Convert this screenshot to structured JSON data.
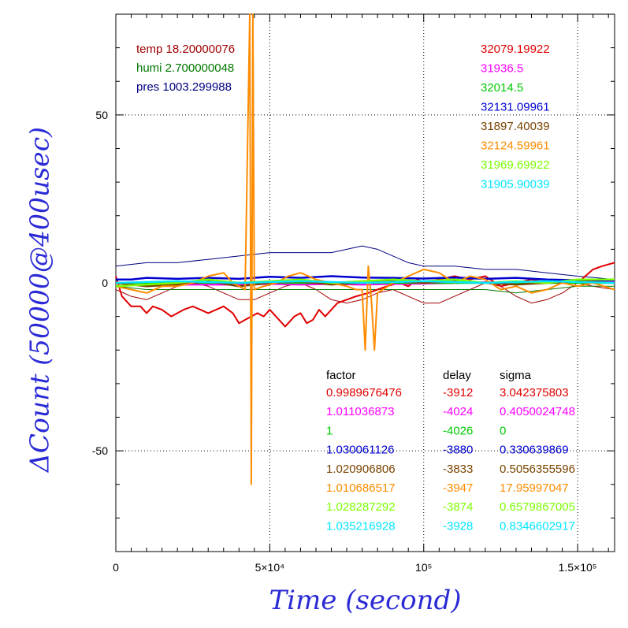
{
  "chart_data": {
    "type": "line",
    "xlabel": "Time (second)",
    "ylabel": "ΔCount (50000@400usec)",
    "xlim": [
      0,
      162000
    ],
    "ylim": [
      -80,
      80
    ],
    "x_tick_labels": [
      {
        "value": 0,
        "label": "0"
      },
      {
        "value": 50000,
        "label": "5×10⁴"
      },
      {
        "value": 100000,
        "label": "10⁵"
      },
      {
        "value": 150000,
        "label": "1.5×10⁵"
      }
    ],
    "y_tick_labels": [
      {
        "value": 50,
        "label": "50"
      },
      {
        "value": 0,
        "label": "0"
      },
      {
        "value": -50,
        "label": "-50"
      }
    ],
    "grid": true,
    "env": [
      {
        "text": "temp 18.20000076",
        "color": "#a00000"
      },
      {
        "text": "humi 2.700000048",
        "color": "#007800"
      },
      {
        "text": "pres 1003.299988",
        "color": "#000080"
      }
    ],
    "series": [
      {
        "color": "#e00000",
        "mean": "32079.19922",
        "factor": "0.9989676476",
        "delay": "-3912",
        "sigma": "3.042375803",
        "points": [
          [
            0,
            2
          ],
          [
            2000,
            -4
          ],
          [
            5000,
            -7
          ],
          [
            8000,
            -7
          ],
          [
            10000,
            -9
          ],
          [
            12000,
            -7
          ],
          [
            15000,
            -8
          ],
          [
            18000,
            -10
          ],
          [
            22000,
            -8
          ],
          [
            25000,
            -7
          ],
          [
            30000,
            -9
          ],
          [
            35000,
            -7
          ],
          [
            38000,
            -9
          ],
          [
            40000,
            -12
          ],
          [
            42000,
            -11
          ],
          [
            44000,
            -10
          ],
          [
            46000,
            -9
          ],
          [
            48000,
            -10
          ],
          [
            50000,
            -8
          ],
          [
            52000,
            -10
          ],
          [
            55000,
            -13
          ],
          [
            58000,
            -10
          ],
          [
            60000,
            -9
          ],
          [
            62000,
            -12
          ],
          [
            64000,
            -11
          ],
          [
            66000,
            -8
          ],
          [
            68000,
            -10
          ],
          [
            70000,
            -8
          ],
          [
            72000,
            -6
          ],
          [
            75000,
            -5
          ],
          [
            78000,
            -4
          ],
          [
            82000,
            -3
          ],
          [
            85000,
            -2
          ],
          [
            88000,
            -1
          ],
          [
            92000,
            0
          ],
          [
            95000,
            -1
          ],
          [
            98000,
            1
          ],
          [
            100000,
            0
          ],
          [
            105000,
            1
          ],
          [
            110000,
            2
          ],
          [
            115000,
            1
          ],
          [
            120000,
            2
          ],
          [
            125000,
            -1
          ],
          [
            130000,
            0
          ],
          [
            135000,
            1
          ],
          [
            140000,
            0
          ],
          [
            145000,
            1
          ],
          [
            150000,
            0
          ],
          [
            155000,
            4
          ],
          [
            158000,
            5
          ],
          [
            162000,
            6
          ]
        ]
      },
      {
        "color": "#ff00ff",
        "mean": "31936.5",
        "factor": "1.011036873",
        "delay": "-4024",
        "sigma": "0.4050024748",
        "points": [
          [
            0,
            0
          ],
          [
            10000,
            0
          ],
          [
            20000,
            -0.5
          ],
          [
            30000,
            -0.5
          ],
          [
            40000,
            -0.5
          ],
          [
            50000,
            -0.3
          ],
          [
            60000,
            -0.5
          ],
          [
            70000,
            -0.3
          ],
          [
            80000,
            -0.5
          ],
          [
            90000,
            -0.3
          ],
          [
            100000,
            -0.2
          ],
          [
            110000,
            0
          ],
          [
            120000,
            0.2
          ],
          [
            130000,
            0
          ],
          [
            140000,
            0.3
          ],
          [
            150000,
            0.2
          ],
          [
            162000,
            0.5
          ]
        ]
      },
      {
        "color": "#00cc00",
        "mean": "32014.5",
        "factor": "1",
        "delay": "-4026",
        "sigma": "0",
        "points": [
          [
            0,
            0
          ],
          [
            20000,
            0
          ],
          [
            40000,
            0
          ],
          [
            60000,
            0
          ],
          [
            80000,
            0
          ],
          [
            100000,
            0
          ],
          [
            120000,
            0
          ],
          [
            140000,
            0
          ],
          [
            162000,
            0
          ]
        ]
      },
      {
        "color": "#0000d0",
        "mean": "32131.09961",
        "factor": "1.030061126",
        "delay": "-3880",
        "sigma": "0.330639869",
        "points": [
          [
            0,
            1
          ],
          [
            5000,
            1
          ],
          [
            10000,
            1.5
          ],
          [
            20000,
            1.2
          ],
          [
            30000,
            1.5
          ],
          [
            40000,
            1.2
          ],
          [
            50000,
            1.8
          ],
          [
            60000,
            1.5
          ],
          [
            70000,
            2
          ],
          [
            80000,
            1.6
          ],
          [
            90000,
            1.5
          ],
          [
            100000,
            1.3
          ],
          [
            110000,
            1.6
          ],
          [
            120000,
            1.2
          ],
          [
            130000,
            1.5
          ],
          [
            140000,
            1
          ],
          [
            150000,
            0.8
          ],
          [
            162000,
            0.8
          ]
        ]
      },
      {
        "color": "#7a4400",
        "mean": "31897.40039",
        "factor": "1.020906806",
        "delay": "-3833",
        "sigma": "0.5056355596",
        "points": [
          [
            0,
            0
          ],
          [
            10000,
            -1
          ],
          [
            20000,
            -0.5
          ],
          [
            30000,
            0.5
          ],
          [
            40000,
            -1
          ],
          [
            50000,
            0
          ],
          [
            60000,
            0.5
          ],
          [
            70000,
            -0.5
          ],
          [
            80000,
            0
          ],
          [
            90000,
            0.5
          ],
          [
            100000,
            0
          ],
          [
            110000,
            0.5
          ],
          [
            120000,
            0
          ],
          [
            130000,
            -0.5
          ],
          [
            140000,
            0
          ],
          [
            150000,
            0.5
          ],
          [
            162000,
            0
          ]
        ]
      },
      {
        "color": "#ff8c00",
        "mean": "32124.59961",
        "factor": "1.010686517",
        "delay": "-3947",
        "sigma": "17.95997047",
        "points": [
          [
            0,
            -1
          ],
          [
            5000,
            -2
          ],
          [
            10000,
            -3
          ],
          [
            15000,
            -1
          ],
          [
            20000,
            -1
          ],
          [
            25000,
            0
          ],
          [
            30000,
            2
          ],
          [
            35000,
            3
          ],
          [
            38000,
            0
          ],
          [
            40000,
            -1
          ],
          [
            42000,
            -2
          ],
          [
            43500,
            80
          ],
          [
            44000,
            -60
          ],
          [
            44500,
            80
          ],
          [
            45000,
            -2
          ],
          [
            48000,
            -1
          ],
          [
            52000,
            0
          ],
          [
            56000,
            2
          ],
          [
            60000,
            3
          ],
          [
            65000,
            1
          ],
          [
            70000,
            0
          ],
          [
            75000,
            -1
          ],
          [
            78000,
            -2
          ],
          [
            80000,
            -2
          ],
          [
            81000,
            -20
          ],
          [
            82000,
            5
          ],
          [
            83000,
            -5
          ],
          [
            84000,
            -20
          ],
          [
            85000,
            -3
          ],
          [
            90000,
            0
          ],
          [
            95000,
            2
          ],
          [
            100000,
            4
          ],
          [
            105000,
            3
          ],
          [
            110000,
            0
          ],
          [
            115000,
            2
          ],
          [
            120000,
            1
          ],
          [
            125000,
            -2
          ],
          [
            130000,
            -1
          ],
          [
            135000,
            -3
          ],
          [
            140000,
            -2
          ],
          [
            145000,
            0
          ],
          [
            150000,
            -1
          ],
          [
            155000,
            0
          ],
          [
            162000,
            -2
          ]
        ]
      },
      {
        "color": "#7cfc00",
        "mean": "31969.69922",
        "factor": "1.028287292",
        "delay": "-3874",
        "sigma": "0.6579867005",
        "points": [
          [
            0,
            -1
          ],
          [
            10000,
            -0.5
          ],
          [
            20000,
            0
          ],
          [
            30000,
            1
          ],
          [
            40000,
            0
          ],
          [
            50000,
            0.5
          ],
          [
            60000,
            1
          ],
          [
            70000,
            0
          ],
          [
            80000,
            0.5
          ],
          [
            90000,
            1
          ],
          [
            100000,
            0.5
          ],
          [
            110000,
            1
          ],
          [
            120000,
            0
          ],
          [
            130000,
            0.5
          ],
          [
            140000,
            0
          ],
          [
            150000,
            1
          ],
          [
            162000,
            1
          ]
        ]
      },
      {
        "color": "#00e5ff",
        "mean": "31905.90039",
        "factor": "1.035216928",
        "delay": "-3928",
        "sigma": "0.8346602917",
        "points": [
          [
            0,
            0
          ],
          [
            20000,
            0.5
          ],
          [
            40000,
            0
          ],
          [
            60000,
            0.5
          ],
          [
            80000,
            0
          ],
          [
            100000,
            0.5
          ],
          [
            120000,
            0
          ],
          [
            140000,
            0.5
          ],
          [
            162000,
            0
          ]
        ]
      }
    ],
    "env_series": [
      {
        "name": "temp",
        "color": "#a00000",
        "points": [
          [
            0,
            -2
          ],
          [
            5000,
            -4
          ],
          [
            10000,
            -5
          ],
          [
            15000,
            -3
          ],
          [
            20000,
            -1
          ],
          [
            25000,
            0
          ],
          [
            30000,
            -1
          ],
          [
            35000,
            -3
          ],
          [
            40000,
            -5
          ],
          [
            45000,
            -5
          ],
          [
            50000,
            -3
          ],
          [
            55000,
            -1
          ],
          [
            60000,
            0
          ],
          [
            65000,
            -2
          ],
          [
            70000,
            -5
          ],
          [
            75000,
            -6
          ],
          [
            80000,
            -5
          ],
          [
            85000,
            -3
          ],
          [
            90000,
            -2
          ],
          [
            95000,
            -4
          ],
          [
            100000,
            -6
          ],
          [
            105000,
            -6
          ],
          [
            110000,
            -4
          ],
          [
            115000,
            -2
          ],
          [
            120000,
            0
          ],
          [
            125000,
            -1
          ],
          [
            130000,
            -4
          ],
          [
            135000,
            -6
          ],
          [
            140000,
            -5
          ],
          [
            145000,
            -3
          ],
          [
            150000,
            0
          ],
          [
            155000,
            -1
          ],
          [
            162000,
            -2
          ]
        ]
      },
      {
        "name": "humi",
        "color": "#007800",
        "points": [
          [
            0,
            -1
          ],
          [
            10000,
            -2
          ],
          [
            20000,
            -2
          ],
          [
            30000,
            -2
          ],
          [
            40000,
            -2
          ],
          [
            50000,
            -2
          ],
          [
            60000,
            -2
          ],
          [
            70000,
            -2
          ],
          [
            80000,
            -2
          ],
          [
            90000,
            -2
          ],
          [
            100000,
            -2
          ],
          [
            110000,
            -2
          ],
          [
            120000,
            -2
          ],
          [
            130000,
            -3
          ],
          [
            140000,
            -2
          ],
          [
            150000,
            -1
          ],
          [
            162000,
            -1
          ]
        ]
      },
      {
        "name": "pres",
        "color": "#000080",
        "points": [
          [
            0,
            5
          ],
          [
            10000,
            6
          ],
          [
            20000,
            6
          ],
          [
            30000,
            7
          ],
          [
            40000,
            8
          ],
          [
            50000,
            9
          ],
          [
            60000,
            9
          ],
          [
            70000,
            9
          ],
          [
            80000,
            11
          ],
          [
            85000,
            10
          ],
          [
            90000,
            8
          ],
          [
            95000,
            6
          ],
          [
            100000,
            5
          ],
          [
            110000,
            5
          ],
          [
            120000,
            4
          ],
          [
            130000,
            4
          ],
          [
            140000,
            3
          ],
          [
            150000,
            2
          ],
          [
            162000,
            1
          ]
        ]
      }
    ],
    "table_headers": {
      "factor": "factor",
      "delay": "delay",
      "sigma": "sigma"
    }
  }
}
